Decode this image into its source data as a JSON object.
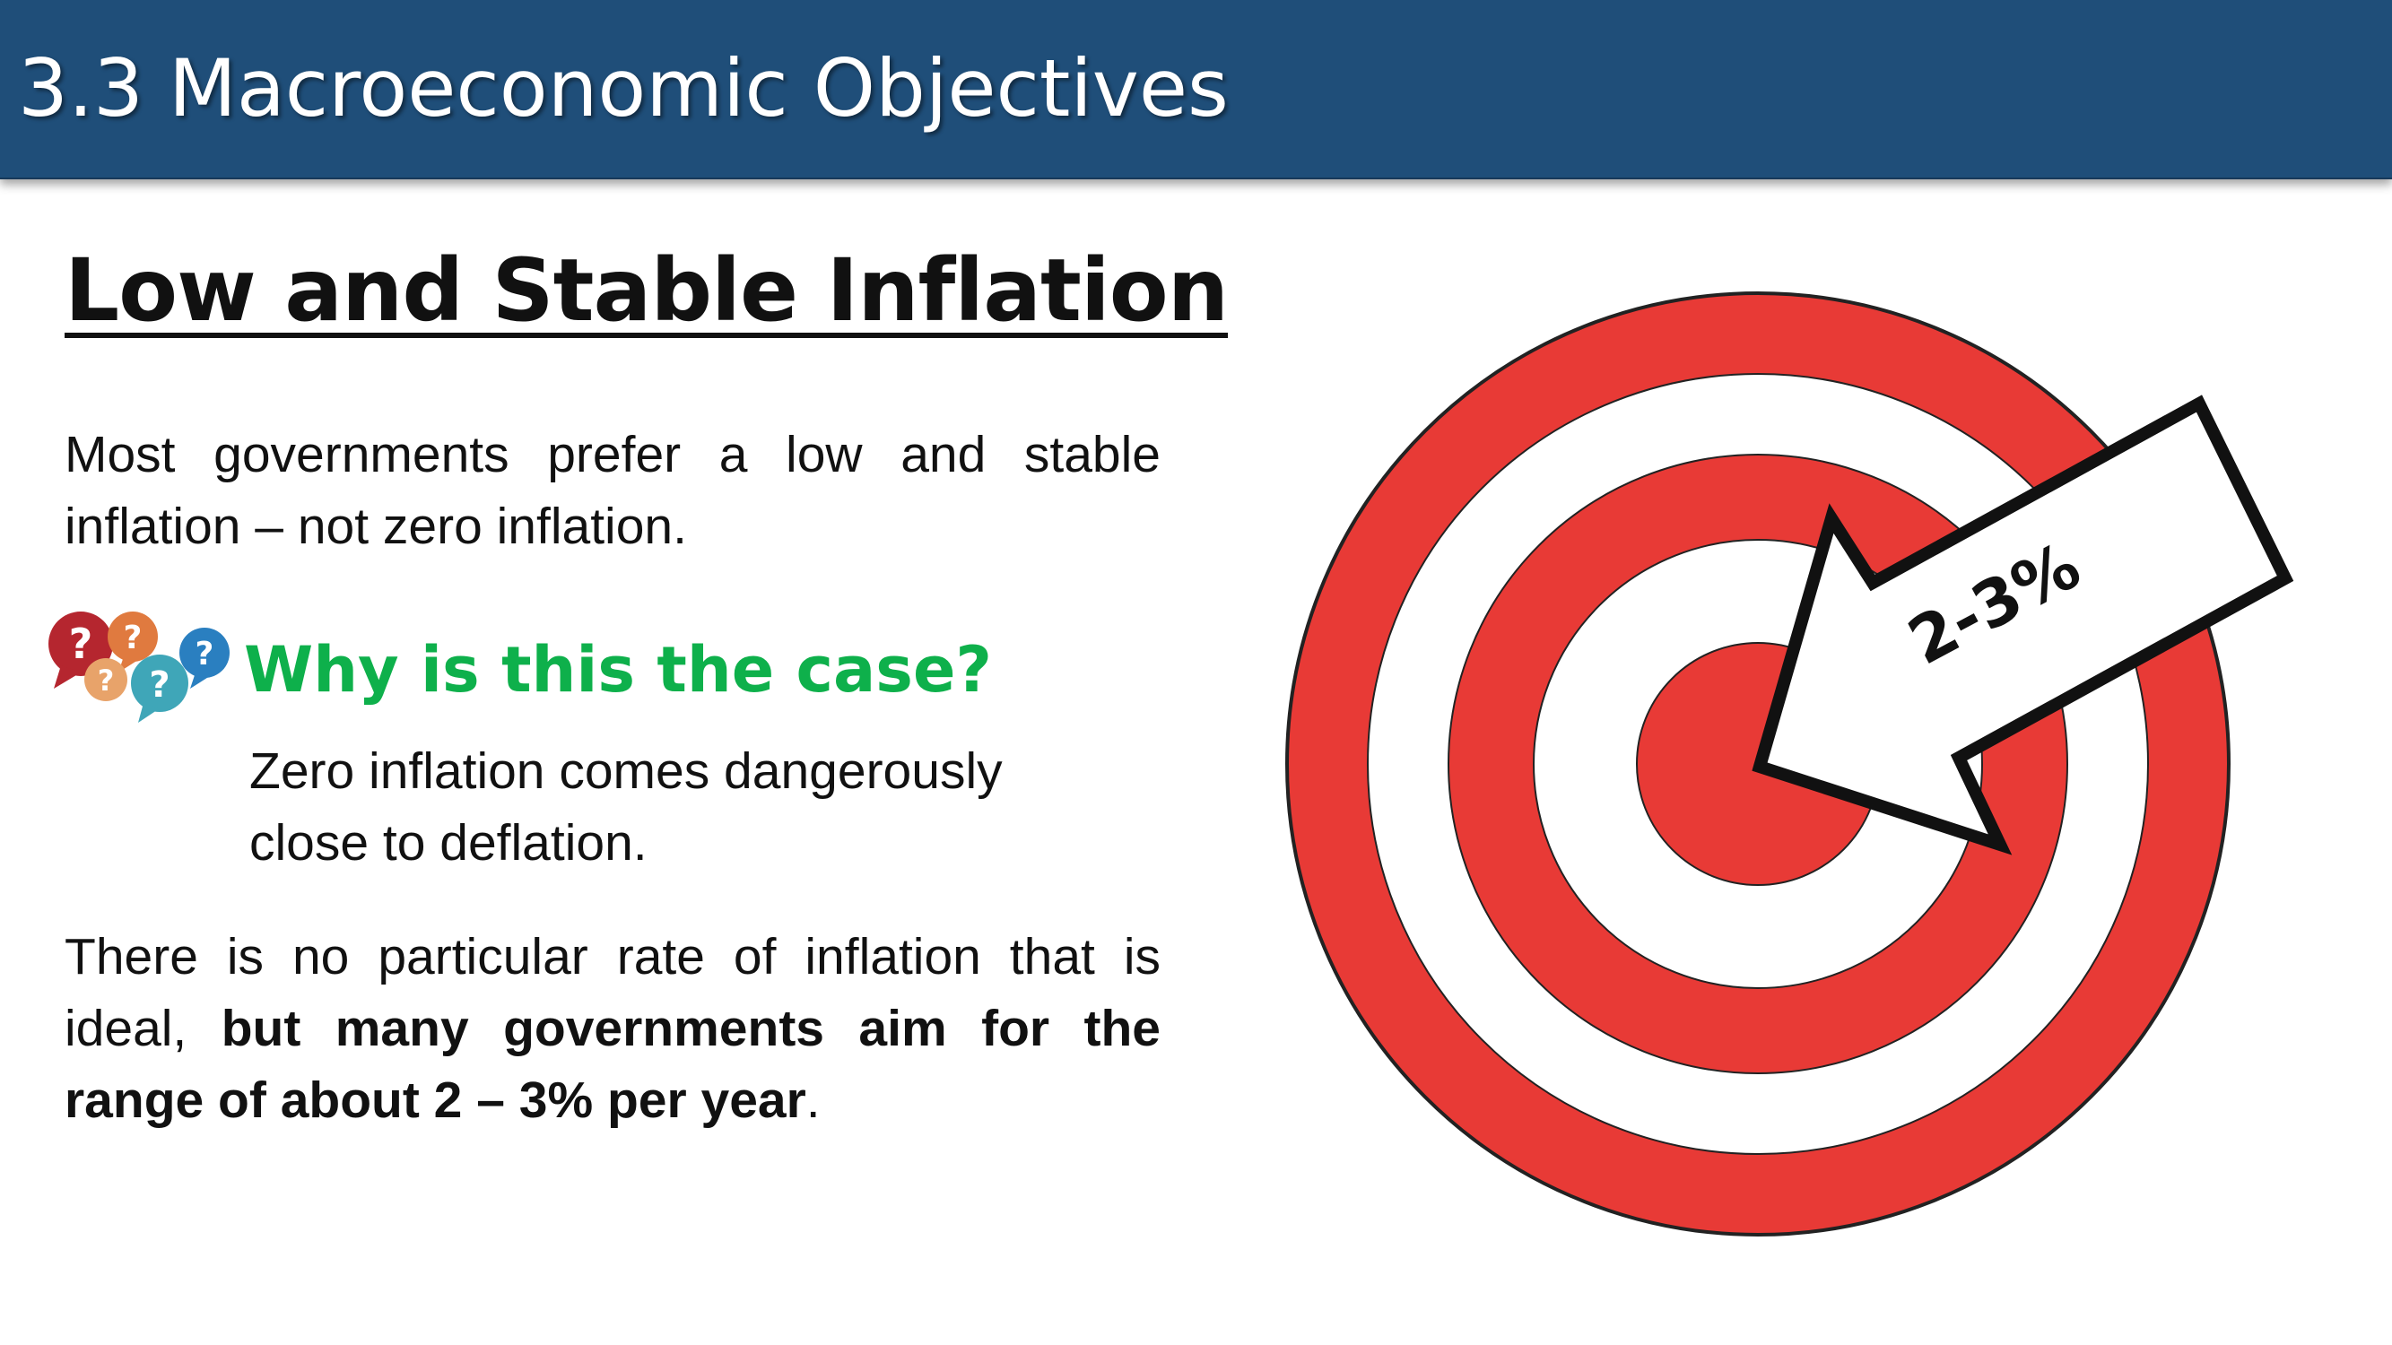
{
  "header": {
    "title": "3.3 Macroeconomic Objectives"
  },
  "section": {
    "heading": "Low and Stable Inflation"
  },
  "content": {
    "paragraph1": "Most governments prefer a low and stable inflation – not zero inflation.",
    "why_heading": "Why is this the case?",
    "answer": "Zero inflation comes dangerously close to deflation.",
    "paragraph3_plain": "There is no particular rate of inflation that is ideal, ",
    "paragraph3_bold": "but many governments aim for the range of about 2 – 3% per year",
    "paragraph3_end": "."
  },
  "target_graphic": {
    "arrow_label": "2-3%",
    "ring_color": "#e83a36",
    "ring_outline": "#222222",
    "arrow_fill": "#ffffff"
  },
  "question_icons": {
    "glyph": "?",
    "colors": [
      "#b5262f",
      "#e07a3f",
      "#e8a36a",
      "#3fa6b8",
      "#2a7fc0"
    ]
  },
  "colors": {
    "header_bg": "#1f4e79",
    "why_heading": "#0eb04b"
  }
}
